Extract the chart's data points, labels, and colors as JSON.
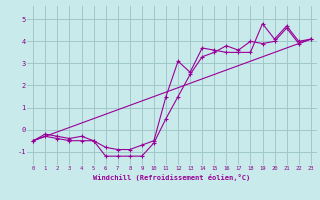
{
  "xlabel": "Windchill (Refroidissement éolien,°C)",
  "background_color": "#c8eaea",
  "grid_color": "#a0c8c8",
  "line_color": "#990099",
  "tick_color": "#880088",
  "xlim": [
    -0.5,
    23.5
  ],
  "ylim": [
    -1.6,
    5.6
  ],
  "yticks": [
    -1,
    0,
    1,
    2,
    3,
    4,
    5
  ],
  "xticks": [
    0,
    1,
    2,
    3,
    4,
    5,
    6,
    7,
    8,
    9,
    10,
    11,
    12,
    13,
    14,
    15,
    16,
    17,
    18,
    19,
    20,
    21,
    22,
    23
  ],
  "series1_x": [
    0,
    1,
    2,
    3,
    4,
    5,
    6,
    7,
    8,
    9,
    10,
    11,
    12,
    13,
    14,
    15,
    16,
    17,
    18,
    19,
    20,
    21,
    22,
    23
  ],
  "series1_y": [
    -0.5,
    -0.3,
    -0.4,
    -0.5,
    -0.5,
    -0.5,
    -0.8,
    -0.9,
    -0.9,
    -0.7,
    -0.5,
    1.5,
    3.1,
    2.6,
    3.7,
    3.6,
    3.5,
    3.5,
    3.5,
    4.8,
    4.1,
    4.7,
    4.0,
    4.1
  ],
  "series2_x": [
    0,
    1,
    2,
    3,
    4,
    5,
    6,
    7,
    8,
    9,
    10,
    11,
    12,
    13,
    14,
    15,
    16,
    17,
    18,
    19,
    20,
    21,
    22,
    23
  ],
  "series2_y": [
    -0.5,
    -0.2,
    -0.3,
    -0.4,
    -0.3,
    -0.5,
    -1.2,
    -1.2,
    -1.2,
    -1.2,
    -0.6,
    0.5,
    1.5,
    2.5,
    3.3,
    3.5,
    3.8,
    3.6,
    4.0,
    3.9,
    4.0,
    4.6,
    3.9,
    4.1
  ],
  "series3_x": [
    0,
    23
  ],
  "series3_y": [
    -0.5,
    4.1
  ]
}
